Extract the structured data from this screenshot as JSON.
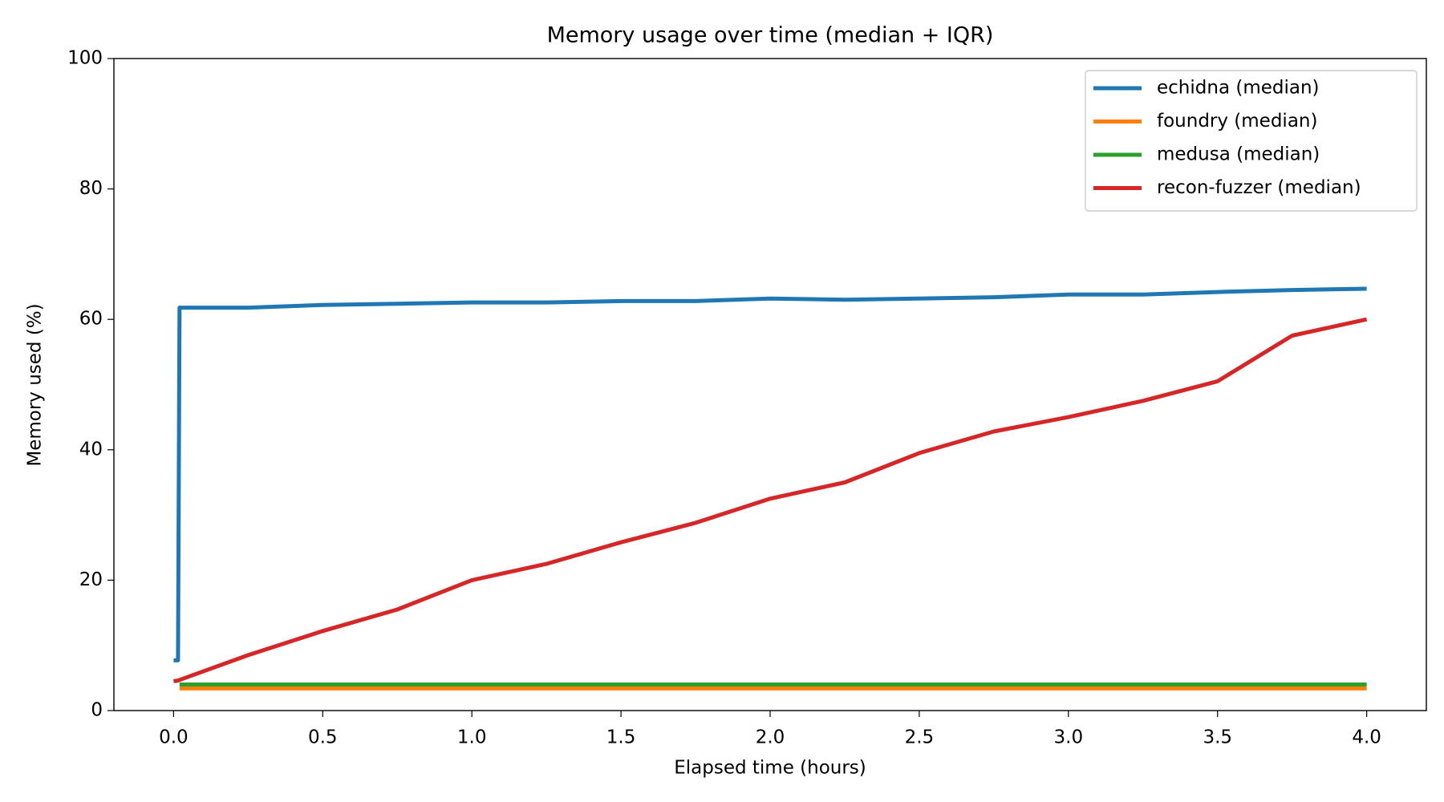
{
  "chart_data": {
    "type": "line",
    "title": "Memory usage over time (median + IQR)",
    "x_label": "Elapsed time (hours)",
    "y_label": "Memory used (%)",
    "x": [
      0,
      0.015,
      0.02,
      0.25,
      0.5,
      0.75,
      1.0,
      1.25,
      1.5,
      1.75,
      2.0,
      2.25,
      2.5,
      2.75,
      3.0,
      3.25,
      3.5,
      3.75,
      4.0
    ],
    "series": [
      {
        "name": "echidna (median)",
        "color": "#1f77b4",
        "values": [
          7.7,
          7.7,
          61.8,
          61.8,
          62.2,
          62.4,
          62.6,
          62.6,
          62.8,
          62.8,
          63.2,
          63.0,
          63.2,
          63.4,
          63.8,
          63.8,
          64.2,
          64.5,
          64.7
        ]
      },
      {
        "name": "foundry (median)",
        "color": "#ff7f0e",
        "values": [
          null,
          null,
          3.4,
          3.4,
          3.4,
          3.4,
          3.4,
          3.4,
          3.4,
          3.4,
          3.4,
          3.4,
          3.4,
          3.4,
          3.4,
          3.4,
          3.4,
          3.4,
          3.4
        ]
      },
      {
        "name": "medusa (median)",
        "color": "#2ca02c",
        "values": [
          null,
          null,
          4.0,
          4.0,
          4.0,
          4.0,
          4.0,
          4.0,
          4.0,
          4.0,
          4.0,
          4.0,
          4.0,
          4.0,
          4.0,
          4.0,
          4.0,
          4.0,
          4.0
        ]
      },
      {
        "name": "recon-fuzzer (median)",
        "color": "#d62728",
        "values": [
          4.5,
          4.6,
          4.7,
          8.5,
          12.2,
          15.5,
          20.0,
          22.5,
          25.8,
          28.8,
          32.5,
          35.0,
          39.5,
          42.8,
          45.0,
          47.5,
          50.5,
          57.5,
          60.0
        ]
      }
    ],
    "xlim": [
      -0.2,
      4.2
    ],
    "ylim": [
      0,
      100
    ],
    "xticks": [
      {
        "value": 0,
        "label": "0.0"
      },
      0.5,
      {
        "value": 1,
        "label": "1.0"
      },
      1.5,
      {
        "value": 2,
        "label": "2.0"
      },
      2.5,
      {
        "value": 3,
        "label": "3.0"
      },
      3.5,
      {
        "value": 4,
        "label": "4.0"
      }
    ],
    "yticks": [
      0,
      20,
      40,
      60,
      80,
      100
    ],
    "legend": "upper right",
    "grid": false
  }
}
